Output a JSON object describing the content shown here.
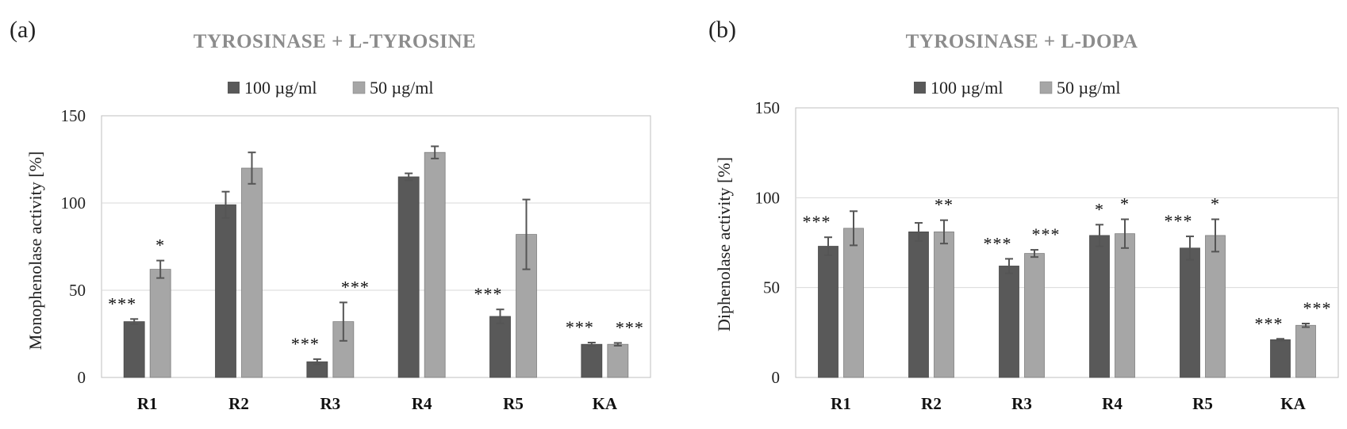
{
  "chart_data": [
    {
      "type": "bar",
      "panel_label": "(a)",
      "title": "TYROSINASE + L-TYROSINE",
      "ylabel": "Monophenolase activity [%]",
      "ylim": [
        0,
        150
      ],
      "yticks": [
        0,
        50,
        100,
        150
      ],
      "categories": [
        "R1",
        "R2",
        "R3",
        "R4",
        "R5",
        "KA"
      ],
      "series": [
        {
          "name": "100 µg/ml",
          "color": "#595959",
          "values": [
            32,
            99,
            9,
            115,
            35,
            19
          ],
          "errors": [
            1.5,
            7.5,
            1.5,
            2,
            4,
            1
          ],
          "stars": [
            "***",
            "",
            "***",
            "",
            "***",
            "***"
          ]
        },
        {
          "name": "50 µg/ml",
          "color": "#a6a6a6",
          "values": [
            62,
            120,
            32,
            129,
            82,
            19
          ],
          "errors": [
            5,
            9,
            11,
            3.5,
            20,
            0.8
          ],
          "stars": [
            "*",
            "",
            "***",
            "",
            "",
            "***"
          ]
        }
      ],
      "legend": "top-center",
      "grid": true
    },
    {
      "type": "bar",
      "panel_label": "(b)",
      "title": "TYROSINASE + L-DOPA",
      "ylabel": "Diphenolase activity [%]",
      "ylim": [
        0,
        150
      ],
      "yticks": [
        0,
        50,
        100,
        150
      ],
      "categories": [
        "R1",
        "R2",
        "R3",
        "R4",
        "R5",
        "KA"
      ],
      "series": [
        {
          "name": "100 µg/ml",
          "color": "#595959",
          "values": [
            73,
            81,
            62,
            79,
            72,
            21
          ],
          "errors": [
            5,
            5,
            4,
            6,
            6.5,
            0.5
          ],
          "stars": [
            "***",
            "",
            "***",
            "*",
            "***",
            "***"
          ]
        },
        {
          "name": "50 µg/ml",
          "color": "#a6a6a6",
          "values": [
            83,
            81,
            69,
            80,
            79,
            29
          ],
          "errors": [
            9.5,
            6.5,
            2,
            8,
            9,
            1
          ],
          "stars": [
            "",
            "**",
            "***",
            "*",
            "*",
            "***"
          ]
        }
      ],
      "legend": "top-center",
      "grid": true
    }
  ]
}
